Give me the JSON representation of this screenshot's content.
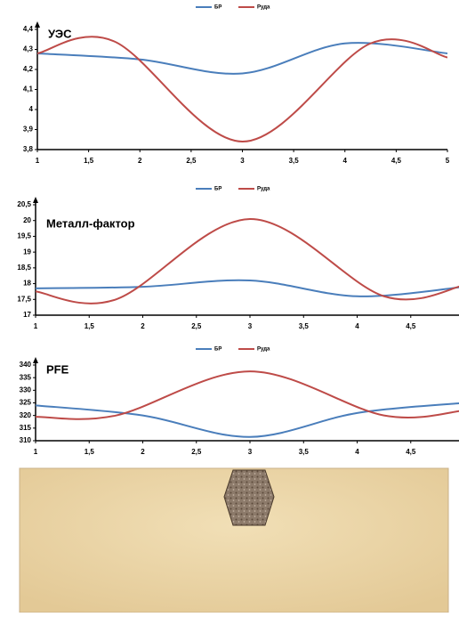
{
  "chart_data": [
    {
      "type": "line",
      "title": "УЭС",
      "xlim": [
        1,
        5
      ],
      "xticks": [
        1,
        {
          "value": 1.5,
          "label": "1,5"
        },
        2,
        {
          "value": 2.5,
          "label": "2,5"
        },
        3,
        {
          "value": 3.5,
          "label": "3,5"
        },
        4,
        {
          "value": 4.5,
          "label": "4,5"
        },
        5
      ],
      "ylim": [
        3.8,
        4.4
      ],
      "yticks": [
        {
          "value": 3.8,
          "label": "3,8"
        },
        {
          "value": 3.9,
          "label": "3,9"
        },
        4,
        {
          "value": 4.1,
          "label": "4,1"
        },
        {
          "value": 4.2,
          "label": "4,2"
        },
        {
          "value": 4.3,
          "label": "4,3"
        },
        {
          "value": 4.4,
          "label": "4,4"
        }
      ],
      "legend": "top",
      "series": [
        {
          "name": "БР",
          "color": "#4a7ebb",
          "x": [
            1,
            2,
            3,
            4,
            5
          ],
          "values": [
            4.28,
            4.25,
            4.18,
            4.33,
            4.28
          ]
        },
        {
          "name": "Руда",
          "color": "#be4b48",
          "x": [
            1,
            1.75,
            3,
            4.25,
            5
          ],
          "values": [
            4.28,
            4.34,
            3.84,
            4.33,
            4.26
          ]
        }
      ]
    },
    {
      "type": "line",
      "title": "Металл-фактор",
      "xlim": [
        1,
        4.95
      ],
      "xticks": [
        1,
        {
          "value": 1.5,
          "label": "1,5"
        },
        2,
        {
          "value": 2.5,
          "label": "2,5"
        },
        3,
        {
          "value": 3.5,
          "label": "3,5"
        },
        4,
        {
          "value": 4.5,
          "label": "4,5"
        }
      ],
      "ylim": [
        17,
        20.5
      ],
      "yticks": [
        17,
        {
          "value": 17.5,
          "label": "17,5"
        },
        18,
        {
          "value": 18.5,
          "label": "18,5"
        },
        19,
        {
          "value": 19.5,
          "label": "19,5"
        },
        20,
        {
          "value": 20.5,
          "label": "20,5"
        }
      ],
      "legend": "top",
      "series": [
        {
          "name": "БР",
          "color": "#4a7ebb",
          "x": [
            1,
            2,
            3,
            4,
            5
          ],
          "values": [
            17.85,
            17.9,
            18.1,
            17.6,
            17.9
          ]
        },
        {
          "name": "Руда",
          "color": "#be4b48",
          "x": [
            1,
            1.75,
            3,
            4.25,
            5
          ],
          "values": [
            17.75,
            17.5,
            20.05,
            17.6,
            17.95
          ]
        }
      ]
    },
    {
      "type": "line",
      "title": "PFE",
      "xlim": [
        1,
        4.95
      ],
      "xticks": [
        1,
        {
          "value": 1.5,
          "label": "1,5"
        },
        2,
        {
          "value": 2.5,
          "label": "2,5"
        },
        3,
        {
          "value": 3.5,
          "label": "3,5"
        },
        4,
        {
          "value": 4.5,
          "label": "4,5"
        }
      ],
      "ylim": [
        310,
        340
      ],
      "yticks": [
        310,
        315,
        320,
        325,
        330,
        335,
        340
      ],
      "legend": "top",
      "series": [
        {
          "name": "БР",
          "color": "#4a7ebb",
          "x": [
            1,
            2,
            3,
            4,
            5
          ],
          "values": [
            324,
            320,
            311.5,
            321,
            325
          ]
        },
        {
          "name": "Руда",
          "color": "#be4b48",
          "x": [
            1,
            1.75,
            3,
            4.25,
            5
          ],
          "values": [
            319.5,
            320,
            337.5,
            320,
            322
          ]
        }
      ]
    }
  ]
}
